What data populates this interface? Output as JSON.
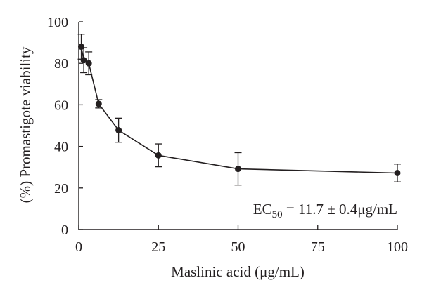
{
  "chart_data": {
    "type": "line",
    "xlabel": "Maslinic acid (μg/mL)",
    "ylabel": "(%) Promastigote viability",
    "xlim": [
      0,
      100
    ],
    "ylim": [
      0,
      100
    ],
    "xticks": [
      0,
      25,
      50,
      75,
      100
    ],
    "yticks": [
      0,
      20,
      40,
      60,
      80,
      100
    ],
    "grid": false,
    "series": [
      {
        "x": [
          0.78,
          1.56,
          3.125,
          6.25,
          12.5,
          25,
          50,
          100
        ],
        "y": [
          88,
          81.5,
          80,
          60.5,
          47.8,
          35.7,
          29.2,
          27.2
        ],
        "error": [
          6,
          6,
          5.5,
          2,
          5.8,
          5.5,
          7.8,
          4.3
        ],
        "color": "#231f20",
        "marker": "circle"
      }
    ],
    "annotations": [
      {
        "text_before": "EC",
        "subscript": "50",
        "text_after": " = 11.7 ± 0.4μg/mL"
      }
    ]
  }
}
